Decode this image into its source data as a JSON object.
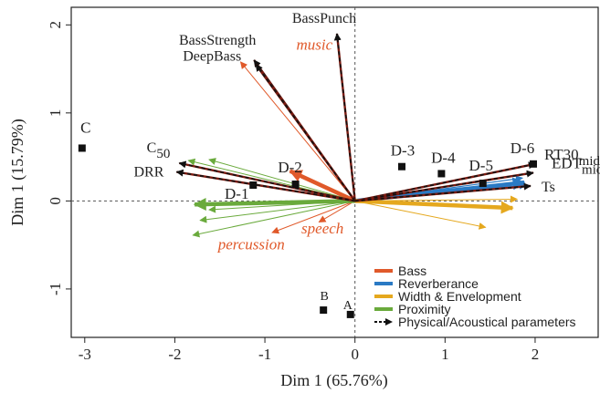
{
  "chart_data": {
    "type": "scatter",
    "title": "",
    "xlabel": "Dim 1 (65.76%)",
    "ylabel": "Dim 1 (15.79%)",
    "xlim": [
      -3.15,
      2.7
    ],
    "ylim": [
      -1.55,
      2.2
    ],
    "xticks": [
      -3,
      -2,
      -1,
      0,
      1,
      2
    ],
    "yticks": [
      -1,
      0,
      1,
      2
    ],
    "xtick_labels": [
      "-3",
      "-2",
      "-1",
      "0",
      "1",
      "2"
    ],
    "ytick_labels": [
      "-1",
      "0",
      "1",
      "2"
    ],
    "individuals": [
      {
        "label": "C",
        "x": -3.03,
        "y": 0.6
      },
      {
        "label": "D-1",
        "x": -1.13,
        "y": 0.18
      },
      {
        "label": "D-2",
        "x": -0.66,
        "y": 0.19
      },
      {
        "label": "D-3",
        "x": 0.52,
        "y": 0.39
      },
      {
        "label": "D-4",
        "x": 0.96,
        "y": 0.31
      },
      {
        "label": "D-5",
        "x": 1.42,
        "y": 0.2
      },
      {
        "label": "D-6",
        "x": 1.98,
        "y": 0.42
      },
      {
        "label": "B",
        "x": -0.35,
        "y": -1.24
      },
      {
        "label": "A",
        "x": -0.05,
        "y": -1.29
      }
    ],
    "parameters": [
      {
        "label": "BassPunch",
        "sub": "",
        "x": -0.2,
        "y": 1.9
      },
      {
        "label": "BassStrength",
        "sub": "",
        "x": -1.12,
        "y": 1.6
      },
      {
        "label": "DeepBass",
        "sub": "",
        "x": -1.1,
        "y": 1.55
      },
      {
        "label": "C",
        "sub": "50",
        "x": -1.95,
        "y": 0.43
      },
      {
        "label": "DRR",
        "sub": "",
        "x": -1.98,
        "y": 0.33
      },
      {
        "label": "RT30",
        "sub": "mid",
        "x": 2.0,
        "y": 0.42
      },
      {
        "label": "EDT",
        "sub": "mid",
        "x": 1.98,
        "y": 0.32
      },
      {
        "label": "Ts",
        "sub": "",
        "x": 1.95,
        "y": 0.17
      }
    ],
    "series": [
      {
        "name": "Bass",
        "color": "#e0592a",
        "arrows": [
          {
            "x": -0.72,
            "y": 0.34,
            "w": 4.5
          },
          {
            "x": -1.27,
            "y": 1.58,
            "w": 1
          },
          {
            "x": -0.4,
            "y": -0.24,
            "w": 1
          },
          {
            "x": -0.92,
            "y": -0.36,
            "w": 1
          }
        ]
      },
      {
        "name": "Reverberance",
        "color": "#2a7ac4",
        "arrows": [
          {
            "x": 1.88,
            "y": 0.21,
            "w": 4.5
          },
          {
            "x": 1.86,
            "y": 0.26,
            "w": 1.2
          },
          {
            "x": 1.9,
            "y": 0.18,
            "w": 1.2
          }
        ]
      },
      {
        "name": "Width & Envelopment",
        "color": "#e5a81e",
        "arrows": [
          {
            "x": 1.75,
            "y": -0.08,
            "w": 4.5
          },
          {
            "x": 1.8,
            "y": 0.02,
            "w": 1
          },
          {
            "x": 1.45,
            "y": -0.3,
            "w": 1
          }
        ]
      },
      {
        "name": "Proximity",
        "color": "#6aaa3c",
        "arrows": [
          {
            "x": -1.78,
            "y": -0.04,
            "w": 4.5
          },
          {
            "x": -1.85,
            "y": 0.46,
            "w": 1
          },
          {
            "x": -1.62,
            "y": 0.47,
            "w": 1
          },
          {
            "x": -1.62,
            "y": -0.1,
            "w": 1
          },
          {
            "x": -1.72,
            "y": -0.22,
            "w": 1
          },
          {
            "x": -1.8,
            "y": -0.39,
            "w": 1
          }
        ]
      },
      {
        "name": "Physical/Acoustical parameters",
        "color": "#000000",
        "arrows": []
      }
    ],
    "attribute_labels": [
      {
        "label": "music",
        "x": -0.45,
        "y": 1.72,
        "color": "#e0592a"
      },
      {
        "label": "speech",
        "x": -0.36,
        "y": -0.37,
        "color": "#e0592a"
      },
      {
        "label": "percussion",
        "x": -1.15,
        "y": -0.55,
        "color": "#e0592a"
      }
    ],
    "legend_position": "bottom-right",
    "grid": false
  }
}
